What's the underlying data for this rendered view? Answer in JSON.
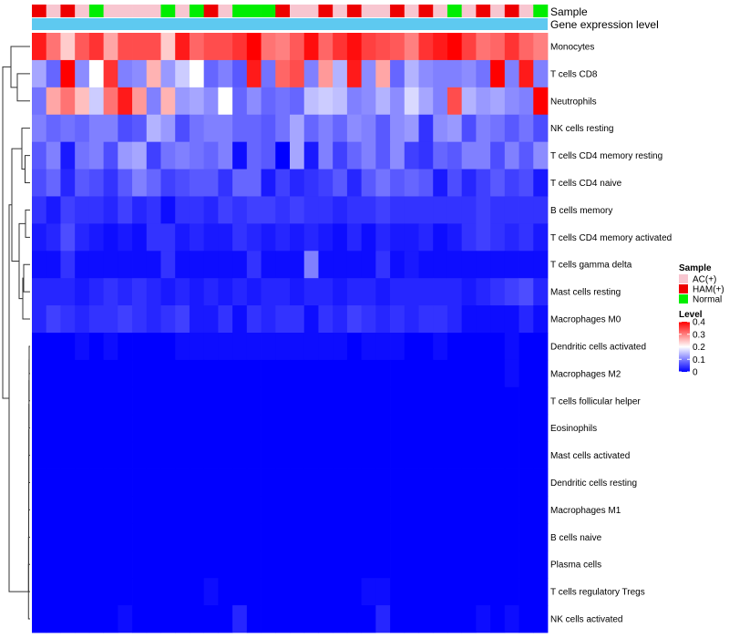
{
  "chart_data": {
    "type": "heatmap",
    "title": "",
    "annotation_labels": [
      "Sample",
      "Gene expression level"
    ],
    "annotation_colors": {
      "AC(+)": "#f8c6d0",
      "HAM(+)": "#ee0000",
      "Normal": "#00ee00",
      "Gene expression level": "#5ec9f0"
    },
    "sample_groups": [
      "HAM(+)",
      "AC(+)",
      "HAM(+)",
      "AC(+)",
      "Normal",
      "AC(+)",
      "AC(+)",
      "AC(+)",
      "AC(+)",
      "Normal",
      "AC(+)",
      "Normal",
      "HAM(+)",
      "AC(+)",
      "Normal",
      "Normal",
      "Normal",
      "HAM(+)",
      "AC(+)",
      "AC(+)",
      "HAM(+)",
      "AC(+)",
      "HAM(+)",
      "AC(+)",
      "AC(+)",
      "HAM(+)",
      "AC(+)",
      "HAM(+)",
      "AC(+)",
      "Normal",
      "AC(+)",
      "HAM(+)",
      "AC(+)",
      "HAM(+)",
      "AC(+)",
      "Normal"
    ],
    "rows": [
      "Monocytes",
      "T cells CD8",
      "Neutrophils",
      "NK cells resting",
      "T cells CD4 memory resting",
      "T cells CD4 naive",
      "B cells memory",
      "T cells CD4 memory activated",
      "T cells gamma delta",
      "Mast cells resting",
      "Macrophages M0",
      "Dendritic cells activated",
      "Macrophages M2",
      "T cells follicular helper",
      "Eosinophils",
      "Mast cells activated",
      "Dendritic cells resting",
      "Macrophages M1",
      "B cells naive",
      "Plasma cells",
      "T cells regulatory  Tregs",
      "NK cells activated"
    ],
    "values": [
      [
        0.38,
        0.31,
        0.24,
        0.33,
        0.36,
        0.27,
        0.34,
        0.34,
        0.34,
        0.24,
        0.38,
        0.32,
        0.34,
        0.34,
        0.36,
        0.4,
        0.31,
        0.3,
        0.33,
        0.39,
        0.32,
        0.36,
        0.39,
        0.35,
        0.34,
        0.33,
        0.3,
        0.36,
        0.38,
        0.4,
        0.35,
        0.31,
        0.32,
        0.36,
        0.32,
        0.3
      ],
      [
        0.13,
        0.08,
        0.4,
        0.11,
        0.2,
        0.36,
        0.1,
        0.11,
        0.26,
        0.12,
        0.16,
        0.2,
        0.08,
        0.1,
        0.07,
        0.38,
        0.09,
        0.32,
        0.34,
        0.1,
        0.28,
        0.14,
        0.38,
        0.11,
        0.27,
        0.08,
        0.14,
        0.11,
        0.1,
        0.1,
        0.11,
        0.09,
        0.4,
        0.1,
        0.38,
        0.1
      ],
      [
        0.09,
        0.27,
        0.31,
        0.25,
        0.16,
        0.31,
        0.38,
        0.28,
        0.1,
        0.26,
        0.12,
        0.13,
        0.11,
        0.2,
        0.08,
        0.11,
        0.08,
        0.09,
        0.08,
        0.15,
        0.16,
        0.15,
        0.1,
        0.11,
        0.14,
        0.11,
        0.17,
        0.13,
        0.1,
        0.34,
        0.14,
        0.12,
        0.13,
        0.11,
        0.1,
        0.4
      ],
      [
        0.1,
        0.08,
        0.09,
        0.08,
        0.1,
        0.1,
        0.06,
        0.07,
        0.14,
        0.12,
        0.06,
        0.09,
        0.1,
        0.1,
        0.08,
        0.08,
        0.07,
        0.09,
        0.13,
        0.08,
        0.1,
        0.08,
        0.11,
        0.1,
        0.07,
        0.11,
        0.12,
        0.04,
        0.11,
        0.12,
        0.06,
        0.1,
        0.09,
        0.07,
        0.09,
        0.06
      ],
      [
        0.07,
        0.1,
        0.02,
        0.09,
        0.1,
        0.06,
        0.12,
        0.13,
        0.05,
        0.09,
        0.1,
        0.09,
        0.08,
        0.1,
        0.01,
        0.08,
        0.07,
        0.0,
        0.13,
        0.02,
        0.1,
        0.05,
        0.08,
        0.1,
        0.07,
        0.11,
        0.05,
        0.04,
        0.08,
        0.07,
        0.1,
        0.1,
        0.06,
        0.1,
        0.07,
        0.11
      ],
      [
        0.06,
        0.08,
        0.03,
        0.07,
        0.06,
        0.04,
        0.07,
        0.1,
        0.08,
        0.05,
        0.06,
        0.07,
        0.07,
        0.04,
        0.08,
        0.08,
        0.02,
        0.05,
        0.03,
        0.04,
        0.05,
        0.07,
        0.03,
        0.07,
        0.09,
        0.07,
        0.08,
        0.07,
        0.02,
        0.06,
        0.03,
        0.05,
        0.07,
        0.05,
        0.06,
        0.02
      ],
      [
        0.04,
        0.02,
        0.05,
        0.04,
        0.04,
        0.03,
        0.05,
        0.03,
        0.04,
        0.01,
        0.04,
        0.04,
        0.03,
        0.05,
        0.04,
        0.05,
        0.05,
        0.04,
        0.05,
        0.04,
        0.04,
        0.03,
        0.04,
        0.04,
        0.05,
        0.04,
        0.04,
        0.04,
        0.04,
        0.04,
        0.04,
        0.05,
        0.04,
        0.04,
        0.04,
        0.04
      ],
      [
        0.02,
        0.03,
        0.06,
        0.03,
        0.02,
        0.01,
        0.02,
        0.01,
        0.04,
        0.04,
        0.02,
        0.03,
        0.02,
        0.02,
        0.04,
        0.03,
        0.02,
        0.03,
        0.02,
        0.03,
        0.02,
        0.01,
        0.03,
        0.01,
        0.03,
        0.02,
        0.02,
        0.03,
        0.01,
        0.02,
        0.04,
        0.05,
        0.04,
        0.03,
        0.04,
        0.02
      ],
      [
        0.01,
        0.01,
        0.04,
        0.01,
        0.01,
        0.01,
        0.01,
        0.01,
        0.01,
        0.04,
        0.01,
        0.01,
        0.01,
        0.01,
        0.01,
        0.04,
        0.01,
        0.01,
        0.01,
        0.1,
        0.01,
        0.01,
        0.01,
        0.01,
        0.04,
        0.01,
        0.02,
        0.01,
        0.01,
        0.01,
        0.01,
        0.01,
        0.01,
        0.01,
        0.01,
        0.01
      ],
      [
        0.03,
        0.03,
        0.03,
        0.02,
        0.03,
        0.04,
        0.03,
        0.04,
        0.03,
        0.02,
        0.03,
        0.02,
        0.03,
        0.02,
        0.03,
        0.02,
        0.03,
        0.03,
        0.02,
        0.03,
        0.03,
        0.02,
        0.03,
        0.03,
        0.02,
        0.03,
        0.03,
        0.03,
        0.03,
        0.03,
        0.02,
        0.03,
        0.04,
        0.05,
        0.06,
        0.03
      ],
      [
        0.03,
        0.05,
        0.04,
        0.03,
        0.04,
        0.04,
        0.05,
        0.04,
        0.03,
        0.04,
        0.05,
        0.02,
        0.02,
        0.04,
        0.01,
        0.04,
        0.03,
        0.04,
        0.04,
        0.01,
        0.04,
        0.03,
        0.05,
        0.04,
        0.03,
        0.04,
        0.03,
        0.04,
        0.04,
        0.03,
        0.01,
        0.01,
        0.01,
        0.01,
        0.03,
        0.01
      ],
      [
        0.0,
        0.0,
        0.0,
        0.01,
        0.0,
        0.01,
        0.0,
        0.0,
        0.0,
        0.0,
        0.01,
        0.01,
        0.01,
        0.01,
        0.01,
        0.01,
        0.01,
        0.01,
        0.01,
        0.01,
        0.01,
        0.01,
        0.0,
        0.01,
        0.01,
        0.01,
        0.0,
        0.0,
        0.01,
        0.0,
        0.0,
        0.0,
        0.0,
        0.01,
        0.0,
        0.0
      ],
      [
        0.0,
        0.0,
        0.0,
        0.0,
        0.0,
        0.0,
        0.0,
        0.0,
        0.0,
        0.0,
        0.0,
        0.0,
        0.0,
        0.0,
        0.0,
        0.0,
        0.0,
        0.0,
        0.0,
        0.0,
        0.0,
        0.0,
        0.0,
        0.0,
        0.0,
        0.0,
        0.0,
        0.0,
        0.0,
        0.0,
        0.0,
        0.0,
        0.0,
        0.01,
        0.0,
        0.0
      ],
      [
        0.0,
        0.0,
        0.0,
        0.0,
        0.0,
        0.0,
        0.0,
        0.0,
        0.0,
        0.0,
        0.0,
        0.0,
        0.0,
        0.0,
        0.0,
        0.0,
        0.0,
        0.0,
        0.0,
        0.0,
        0.0,
        0.0,
        0.0,
        0.0,
        0.0,
        0.0,
        0.0,
        0.0,
        0.0,
        0.0,
        0.0,
        0.0,
        0.0,
        0.0,
        0.0,
        0.0
      ],
      [
        0.0,
        0.0,
        0.0,
        0.0,
        0.0,
        0.0,
        0.0,
        0.0,
        0.0,
        0.0,
        0.0,
        0.0,
        0.0,
        0.0,
        0.0,
        0.0,
        0.0,
        0.0,
        0.0,
        0.0,
        0.0,
        0.0,
        0.0,
        0.0,
        0.0,
        0.0,
        0.0,
        0.0,
        0.0,
        0.0,
        0.0,
        0.0,
        0.0,
        0.0,
        0.0,
        0.0
      ],
      [
        0.0,
        0.0,
        0.0,
        0.0,
        0.0,
        0.0,
        0.0,
        0.0,
        0.0,
        0.0,
        0.0,
        0.0,
        0.0,
        0.0,
        0.0,
        0.0,
        0.0,
        0.0,
        0.0,
        0.0,
        0.0,
        0.0,
        0.0,
        0.0,
        0.0,
        0.0,
        0.0,
        0.0,
        0.0,
        0.0,
        0.0,
        0.0,
        0.0,
        0.0,
        0.0,
        0.0
      ],
      [
        0.0,
        0.0,
        0.0,
        0.0,
        0.0,
        0.0,
        0.0,
        0.0,
        0.0,
        0.0,
        0.0,
        0.0,
        0.0,
        0.0,
        0.0,
        0.0,
        0.0,
        0.0,
        0.0,
        0.0,
        0.0,
        0.0,
        0.0,
        0.0,
        0.0,
        0.0,
        0.0,
        0.0,
        0.0,
        0.0,
        0.0,
        0.0,
        0.0,
        0.0,
        0.0,
        0.0
      ],
      [
        0.0,
        0.0,
        0.0,
        0.0,
        0.0,
        0.0,
        0.0,
        0.0,
        0.0,
        0.0,
        0.0,
        0.0,
        0.0,
        0.0,
        0.0,
        0.0,
        0.0,
        0.0,
        0.0,
        0.0,
        0.0,
        0.0,
        0.0,
        0.0,
        0.0,
        0.0,
        0.0,
        0.0,
        0.0,
        0.0,
        0.0,
        0.0,
        0.0,
        0.0,
        0.0,
        0.0
      ],
      [
        0.0,
        0.0,
        0.0,
        0.0,
        0.0,
        0.0,
        0.0,
        0.0,
        0.0,
        0.0,
        0.0,
        0.0,
        0.0,
        0.0,
        0.0,
        0.0,
        0.0,
        0.0,
        0.0,
        0.0,
        0.0,
        0.0,
        0.0,
        0.0,
        0.0,
        0.0,
        0.0,
        0.0,
        0.0,
        0.0,
        0.0,
        0.0,
        0.0,
        0.0,
        0.0,
        0.0
      ],
      [
        0.0,
        0.0,
        0.0,
        0.0,
        0.0,
        0.0,
        0.0,
        0.0,
        0.0,
        0.0,
        0.0,
        0.0,
        0.0,
        0.0,
        0.0,
        0.0,
        0.0,
        0.0,
        0.0,
        0.0,
        0.0,
        0.0,
        0.0,
        0.0,
        0.0,
        0.0,
        0.0,
        0.0,
        0.0,
        0.0,
        0.0,
        0.0,
        0.0,
        0.0,
        0.0,
        0.0
      ],
      [
        0.0,
        0.0,
        0.0,
        0.0,
        0.0,
        0.0,
        0.0,
        0.0,
        0.0,
        0.0,
        0.0,
        0.0,
        0.01,
        0.0,
        0.0,
        0.0,
        0.0,
        0.0,
        0.0,
        0.0,
        0.0,
        0.0,
        0.0,
        0.01,
        0.01,
        0.0,
        0.0,
        0.0,
        0.0,
        0.0,
        0.0,
        0.0,
        0.0,
        0.0,
        0.0,
        0.0
      ],
      [
        0.0,
        0.0,
        0.0,
        0.0,
        0.0,
        0.0,
        0.01,
        0.0,
        0.0,
        0.0,
        0.0,
        0.0,
        0.0,
        0.0,
        0.03,
        0.0,
        0.0,
        0.0,
        0.0,
        0.0,
        0.0,
        0.0,
        0.0,
        0.0,
        0.03,
        0.0,
        0.0,
        0.0,
        0.0,
        0.0,
        0.0,
        0.01,
        0.0,
        0.01,
        0.0,
        0.0
      ]
    ],
    "legend": {
      "sample_title": "Sample",
      "sample_entries": [
        "AC(+)",
        "HAM(+)",
        "Normal"
      ],
      "level_title": "Level",
      "level_ticks": [
        "0.4",
        "0.3",
        "0.2",
        "0.1",
        "0"
      ],
      "level_tick_values": [
        0.4,
        0.3,
        0.2,
        0.1,
        0.0
      ],
      "range": [
        0,
        0.4
      ],
      "colors": {
        "low": "#0000ff",
        "mid": "#ffffff",
        "high": "#ff0000"
      }
    }
  }
}
